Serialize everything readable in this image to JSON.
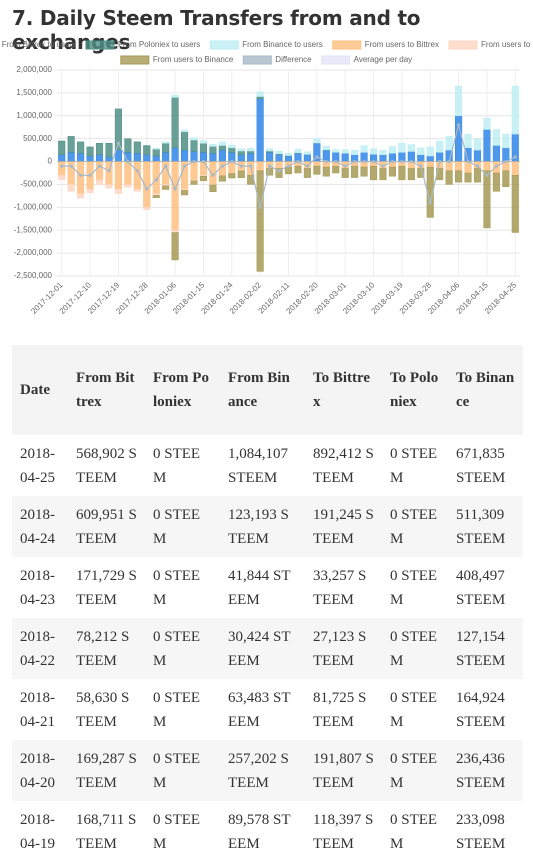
{
  "header": {
    "title": "7. Daily Steem Transfers from and to exchanges"
  },
  "chart_data": {
    "type": "bar",
    "stacked": true,
    "grid": true,
    "categories": [
      "2017-12-01",
      null,
      null,
      "2017-12-10",
      null,
      null,
      "2017-12-19",
      null,
      null,
      "2017-12-28",
      null,
      null,
      "2018-01-06",
      null,
      null,
      "2018-01-15",
      null,
      null,
      "2018-01-24",
      null,
      null,
      "2018-02-02",
      null,
      null,
      "2018-02-11",
      null,
      null,
      "2018-02-20",
      null,
      null,
      "2018-03-01",
      null,
      null,
      "2018-03-10",
      null,
      null,
      "2018-03-19",
      null,
      null,
      "2018-03-28",
      null,
      null,
      "2018-04-06",
      null,
      null,
      "2018-04-15",
      null,
      null,
      "2018-04-25"
    ],
    "ylim": [
      -2500000,
      2000000
    ],
    "yticks": [
      {
        "value": 2000000,
        "label": "2,000,000"
      },
      {
        "value": 1500000,
        "label": "1,500,000"
      },
      {
        "value": 1000000,
        "label": "1,000,000"
      },
      {
        "value": 500000,
        "label": "500,000"
      },
      0,
      {
        "value": -500000,
        "label": "-500,000"
      },
      {
        "value": -1000000,
        "label": "-1,000,000"
      },
      {
        "value": -1500000,
        "label": "-1,500,000"
      },
      {
        "value": -2000000,
        "label": "-2,000,000"
      },
      {
        "value": -2500000,
        "label": "-2,500,000"
      }
    ],
    "series": [
      {
        "name": "From Bittrex to users",
        "color": "#2f86e8",
        "values": [
          150000,
          200000,
          180000,
          120000,
          150000,
          100000,
          250000,
          200000,
          180000,
          150000,
          120000,
          200000,
          300000,
          250000,
          220000,
          200000,
          180000,
          250000,
          200000,
          150000,
          180000,
          1370000,
          200000,
          150000,
          120000,
          180000,
          150000,
          400000,
          250000,
          200000,
          180000,
          150000,
          200000,
          160000,
          150000,
          180000,
          200000,
          220000,
          150000,
          120000,
          200000,
          250000,
          1000000,
          300000,
          250000,
          700000,
          350000,
          300000,
          600000
        ]
      },
      {
        "name": "From Poloniex to users",
        "color": "#4f8f85",
        "values": [
          300000,
          350000,
          250000,
          200000,
          250000,
          300000,
          900000,
          300000,
          250000,
          200000,
          150000,
          200000,
          1100000,
          400000,
          250000,
          200000,
          150000,
          100000,
          100000,
          80000,
          50000,
          50000,
          30000,
          20000,
          10000,
          10000,
          5000,
          5000,
          5000,
          0,
          0,
          0,
          0,
          0,
          0,
          0,
          0,
          0,
          0,
          0,
          0,
          0,
          0,
          0,
          0,
          0,
          0,
          0,
          0
        ]
      },
      {
        "name": "From Binance to users",
        "color": "#bdeef3",
        "values": [
          0,
          0,
          0,
          0,
          0,
          0,
          0,
          0,
          0,
          0,
          20000,
          30000,
          50000,
          40000,
          50000,
          60000,
          50000,
          80000,
          60000,
          50000,
          60000,
          100000,
          50000,
          60000,
          50000,
          80000,
          60000,
          100000,
          80000,
          60000,
          80000,
          100000,
          150000,
          120000,
          100000,
          150000,
          200000,
          150000,
          150000,
          200000,
          250000,
          300000,
          650000,
          300000,
          250000,
          250000,
          350000,
          300000,
          1050000
        ]
      },
      {
        "name": "From users to Bittrex",
        "color": "#ffbf80",
        "values": [
          -300000,
          -500000,
          -700000,
          -600000,
          -400000,
          -500000,
          -600000,
          -500000,
          -600000,
          -1000000,
          -700000,
          -500000,
          -1500000,
          -600000,
          -400000,
          -300000,
          -500000,
          -300000,
          -250000,
          -200000,
          -300000,
          -200000,
          -150000,
          -150000,
          -120000,
          -100000,
          -150000,
          -100000,
          -120000,
          -100000,
          -150000,
          -100000,
          -120000,
          -100000,
          -150000,
          -120000,
          -100000,
          -150000,
          -150000,
          -120000,
          -150000,
          -200000,
          -200000,
          -250000,
          -150000,
          -200000,
          -250000,
          -200000,
          -300000
        ]
      },
      {
        "name": "From users to Poloniex",
        "color": "#ffd5c2",
        "values": [
          -100000,
          -150000,
          -100000,
          -80000,
          -100000,
          -80000,
          -100000,
          -60000,
          -50000,
          -50000,
          -40000,
          -30000,
          -50000,
          -30000,
          -20000,
          -20000,
          -10000,
          -10000,
          -10000,
          -5000,
          0,
          0,
          0,
          0,
          0,
          0,
          0,
          0,
          0,
          0,
          0,
          0,
          0,
          0,
          0,
          0,
          0,
          0,
          0,
          0,
          0,
          0,
          0,
          0,
          0,
          0,
          0,
          0,
          0
        ]
      },
      {
        "name": "From users to Binance",
        "color": "#a69a55",
        "values": [
          0,
          0,
          0,
          0,
          0,
          0,
          0,
          0,
          0,
          0,
          -50000,
          -80000,
          -600000,
          -100000,
          -80000,
          -100000,
          -150000,
          -120000,
          -100000,
          -150000,
          -200000,
          -2200000,
          -150000,
          -200000,
          -150000,
          -150000,
          -200000,
          -180000,
          -200000,
          -150000,
          -200000,
          -250000,
          -200000,
          -300000,
          -250000,
          -200000,
          -300000,
          -250000,
          -200000,
          -1100000,
          -250000,
          -300000,
          -250000,
          -200000,
          -300000,
          -1250000,
          -400000,
          -350000,
          -1250000
        ]
      },
      {
        "name": "Difference",
        "type": "line",
        "color": "#a7b9c8",
        "values": [
          -100000,
          -100000,
          -300000,
          -300000,
          -100000,
          -200000,
          400000,
          0,
          -200000,
          -600000,
          -400000,
          -100000,
          -600000,
          -100000,
          0,
          0,
          -300000,
          -100000,
          0,
          -100000,
          -100000,
          -1000000,
          -100000,
          -200000,
          -100000,
          0,
          -100000,
          100000,
          0,
          0,
          -100000,
          0,
          0,
          0,
          -100000,
          0,
          0,
          0,
          -100000,
          -900000,
          0,
          0,
          800000,
          0,
          -100000,
          -300000,
          -100000,
          0,
          100000
        ]
      },
      {
        "name": "Average per day",
        "type": "line",
        "color": "#e3e3f8",
        "values": [
          null,
          null,
          null,
          null,
          null,
          null,
          null,
          null,
          null,
          null,
          null,
          null,
          null,
          null,
          null,
          null,
          null,
          null,
          null,
          null,
          null,
          null,
          null,
          null,
          null,
          null,
          null,
          null,
          null,
          null,
          null,
          null,
          null,
          null,
          null,
          null,
          null,
          null,
          null,
          null,
          null,
          null,
          null,
          null,
          null,
          null,
          null,
          null,
          null
        ]
      }
    ]
  },
  "table": {
    "headers": [
      "Date",
      "From Bittrex",
      "From Poloniex",
      "From Binance",
      "To Bittrex",
      "To Poloniex",
      "To Binance"
    ],
    "rows": [
      [
        "2018-04-25",
        "568,902 STEEM",
        "0 STEEM",
        "1,084,107 STEEM",
        "892,412 STEEM",
        "0 STEEM",
        "671,835 STEEM"
      ],
      [
        "2018-04-24",
        "609,951 STEEM",
        "0 STEEM",
        "123,193 STEEM",
        "191,245 STEEM",
        "0 STEEM",
        "511,309 STEEM"
      ],
      [
        "2018-04-23",
        "171,729 STEEM",
        "0 STEEM",
        "41,844 STEEM",
        "33,257 STEEM",
        "0 STEEM",
        "408,497 STEEM"
      ],
      [
        "2018-04-22",
        "78,212 STEEM",
        "0 STEEM",
        "30,424 STEEM",
        "27,123 STEEM",
        "0 STEEM",
        "127,154 STEEM"
      ],
      [
        "2018-04-21",
        "58,630 STEEM",
        "0 STEEM",
        "63,483 STEEM",
        "81,725 STEEM",
        "0 STEEM",
        "164,924 STEEM"
      ],
      [
        "2018-04-20",
        "169,287 STEEM",
        "0 STEEM",
        "257,202 STEEM",
        "191,807 STEEM",
        "0 STEEM",
        "236,436 STEEM"
      ],
      [
        "2018-04-19",
        "168,711 STEEM",
        "0 STEEM",
        "89,578 STEEM",
        "118,397 STEEM",
        "0 STEEM",
        "233,098 STEEM"
      ]
    ]
  }
}
